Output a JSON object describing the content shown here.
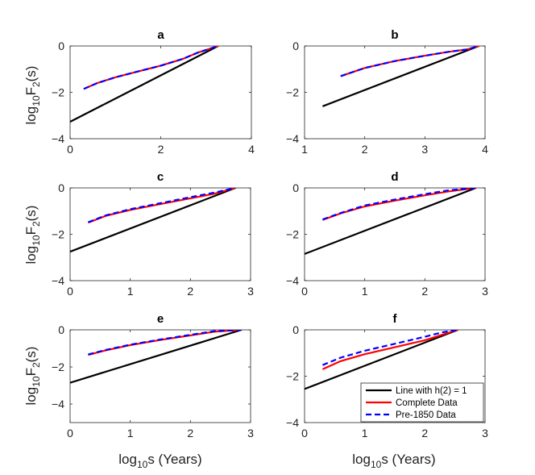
{
  "chart_data": [
    {
      "type": "line",
      "panel": "a",
      "title": "a",
      "xlabel": "",
      "ylabel": "log10F2(s)",
      "xlim": [
        0,
        4
      ],
      "ylim": [
        -4,
        0
      ],
      "xticks": [
        0,
        2,
        4
      ],
      "yticks": [
        -4,
        -2,
        0
      ],
      "series": [
        {
          "name": "Line with h(2) = 1",
          "x": [
            0,
            3.27
          ],
          "y": [
            -3.27,
            0
          ]
        },
        {
          "name": "Complete Data",
          "x": [
            0.3,
            0.6,
            1.0,
            1.5,
            2.0,
            2.5,
            2.8,
            3.27
          ],
          "y": [
            -1.85,
            -1.6,
            -1.35,
            -1.1,
            -0.85,
            -0.55,
            -0.3,
            0
          ]
        },
        {
          "name": "Pre-1850 Data",
          "x": [
            0.3,
            0.6,
            1.0,
            1.5,
            2.0,
            2.5,
            2.8,
            3.27
          ],
          "y": [
            -1.85,
            -1.6,
            -1.35,
            -1.1,
            -0.85,
            -0.55,
            -0.3,
            0
          ]
        }
      ]
    },
    {
      "type": "line",
      "panel": "b",
      "title": "b",
      "xlabel": "",
      "ylabel": "",
      "xlim": [
        1,
        4
      ],
      "ylim": [
        -4,
        0
      ],
      "xticks": [
        1,
        2,
        3,
        4
      ],
      "yticks": [
        -4,
        -2,
        0
      ],
      "series": [
        {
          "name": "Line with h(2) = 1",
          "x": [
            1.3,
            3.9
          ],
          "y": [
            -2.6,
            0
          ]
        },
        {
          "name": "Complete Data",
          "x": [
            1.6,
            2.0,
            2.5,
            3.0,
            3.4,
            3.7,
            3.9
          ],
          "y": [
            -1.3,
            -0.95,
            -0.65,
            -0.42,
            -0.25,
            -0.15,
            0
          ]
        },
        {
          "name": "Pre-1850 Data",
          "x": [
            1.6,
            2.0,
            2.5,
            3.0,
            3.4,
            3.7,
            3.9
          ],
          "y": [
            -1.3,
            -0.95,
            -0.65,
            -0.42,
            -0.25,
            -0.15,
            0
          ]
        }
      ]
    },
    {
      "type": "line",
      "panel": "c",
      "title": "c",
      "xlabel": "",
      "ylabel": "log10F2(s)",
      "xlim": [
        0,
        3
      ],
      "ylim": [
        -4,
        0
      ],
      "xticks": [
        0,
        1,
        2,
        3
      ],
      "yticks": [
        -4,
        -2,
        0
      ],
      "series": [
        {
          "name": "Line with h(2) = 1",
          "x": [
            0,
            2.75
          ],
          "y": [
            -2.75,
            0
          ]
        },
        {
          "name": "Complete Data",
          "x": [
            0.3,
            0.6,
            1.0,
            1.5,
            2.0,
            2.4,
            2.75
          ],
          "y": [
            -1.5,
            -1.2,
            -0.95,
            -0.7,
            -0.45,
            -0.25,
            0
          ]
        },
        {
          "name": "Pre-1850 Data",
          "x": [
            0.3,
            0.6,
            1.0,
            1.5,
            2.0,
            2.4,
            2.75
          ],
          "y": [
            -1.48,
            -1.18,
            -0.92,
            -0.66,
            -0.4,
            -0.2,
            0
          ]
        }
      ]
    },
    {
      "type": "line",
      "panel": "d",
      "title": "d",
      "xlabel": "",
      "ylabel": "",
      "xlim": [
        0,
        3
      ],
      "ylim": [
        -4,
        0
      ],
      "xticks": [
        0,
        1,
        2,
        3
      ],
      "yticks": [
        -4,
        -2,
        0
      ],
      "series": [
        {
          "name": "Line with h(2) = 1",
          "x": [
            0,
            2.85
          ],
          "y": [
            -2.85,
            0
          ]
        },
        {
          "name": "Complete Data",
          "x": [
            0.3,
            0.6,
            1.0,
            1.5,
            2.0,
            2.4,
            2.85
          ],
          "y": [
            -1.38,
            -1.1,
            -0.8,
            -0.55,
            -0.32,
            -0.15,
            0
          ]
        },
        {
          "name": "Pre-1850 Data",
          "x": [
            0.3,
            0.6,
            1.0,
            1.5,
            2.0,
            2.4,
            2.85
          ],
          "y": [
            -1.36,
            -1.08,
            -0.76,
            -0.5,
            -0.27,
            -0.1,
            0
          ]
        }
      ]
    },
    {
      "type": "line",
      "panel": "e",
      "title": "e",
      "xlabel": "log10s (Years)",
      "ylabel": "log10F2(s)",
      "xlim": [
        0,
        3
      ],
      "ylim": [
        -5,
        0
      ],
      "xticks": [
        0,
        1,
        2,
        3
      ],
      "yticks": [
        -4,
        -2,
        0
      ],
      "series": [
        {
          "name": "Line with h(2) = 1",
          "x": [
            0,
            2.85
          ],
          "y": [
            -2.85,
            0
          ]
        },
        {
          "name": "Complete Data",
          "x": [
            0.3,
            0.6,
            1.0,
            1.5,
            2.0,
            2.4,
            2.85
          ],
          "y": [
            -1.35,
            -1.1,
            -0.82,
            -0.55,
            -0.3,
            -0.1,
            0
          ]
        },
        {
          "name": "Pre-1850 Data",
          "x": [
            0.3,
            0.6,
            1.0,
            1.5,
            2.0,
            2.4,
            2.85
          ],
          "y": [
            -1.33,
            -1.08,
            -0.8,
            -0.52,
            -0.27,
            -0.07,
            0
          ]
        }
      ]
    },
    {
      "type": "line",
      "panel": "f",
      "title": "f",
      "xlabel": "log10s (Years)",
      "ylabel": "",
      "xlim": [
        0,
        3
      ],
      "ylim": [
        -4,
        0
      ],
      "xticks": [
        0,
        1,
        2,
        3
      ],
      "yticks": [
        -4,
        -2,
        0
      ],
      "series": [
        {
          "name": "Line with h(2) = 1",
          "x": [
            0,
            2.55
          ],
          "y": [
            -2.55,
            0
          ]
        },
        {
          "name": "Complete Data",
          "x": [
            0.3,
            0.6,
            1.0,
            1.5,
            2.0,
            2.3,
            2.55
          ],
          "y": [
            -1.7,
            -1.35,
            -1.05,
            -0.75,
            -0.45,
            -0.2,
            0
          ]
        },
        {
          "name": "Pre-1850 Data",
          "x": [
            0.3,
            0.6,
            1.0,
            1.5,
            2.0,
            2.3,
            2.55
          ],
          "y": [
            -1.52,
            -1.2,
            -0.9,
            -0.6,
            -0.3,
            -0.1,
            0
          ]
        }
      ]
    }
  ],
  "legend": {
    "panel": "f",
    "entries": [
      {
        "label": "Line with h(2) = 1",
        "color": "#000000",
        "dash": "solid"
      },
      {
        "label": "Complete Data",
        "color": "#ff0000",
        "dash": "solid"
      },
      {
        "label": "Pre-1850 Data",
        "color": "#0000ff",
        "dash": "dashed"
      }
    ]
  },
  "series_styles": {
    "Line with h(2) = 1": {
      "color": "#000000",
      "dash": "solid"
    },
    "Complete Data": {
      "color": "#ff0000",
      "dash": "solid"
    },
    "Pre-1850 Data": {
      "color": "#0000ff",
      "dash": "dashed"
    }
  }
}
